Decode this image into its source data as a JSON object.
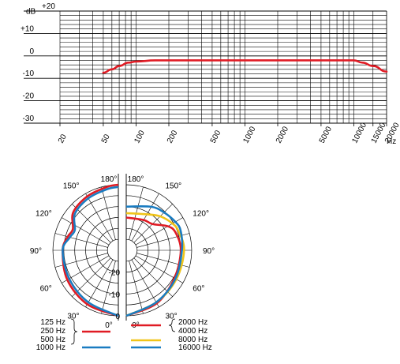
{
  "colors": {
    "red": "#e01b24",
    "blue": "#1a7cc1",
    "yellow": "#f0c419",
    "grid": "#000000"
  },
  "chart_data": [
    {
      "type": "line",
      "xscale": "log",
      "xlim": [
        20,
        20000
      ],
      "ylim": [
        -30,
        20
      ],
      "ylabel": "dB",
      "xunit": "Hz",
      "y_ticks": [
        "+20",
        "+10",
        "0",
        "-10",
        "-20",
        "-30"
      ],
      "x_ticks": [
        "20",
        "50",
        "100",
        "200",
        "500",
        "1000",
        "2000",
        "5000",
        "10000",
        "15000",
        "20000"
      ],
      "grid": true,
      "series": [
        {
          "color": "#e01b24",
          "x": [
            50,
            60,
            70,
            85,
            100,
            150,
            300,
            1000,
            5000,
            10000,
            12000,
            15000,
            20000
          ],
          "y": [
            -7.5,
            -6,
            -4.5,
            -3,
            -2.5,
            -2,
            -2,
            -2,
            -2,
            -2,
            -3,
            -4.5,
            -7
          ]
        }
      ]
    },
    {
      "type": "polar",
      "angle_labels": [
        "0°",
        "30°",
        "60°",
        "90°",
        "120°",
        "150°",
        "180°"
      ],
      "radial_labels": [
        "0",
        "-10",
        "-20"
      ],
      "left_half": [
        {
          "color": "#e01b24",
          "label": "125 Hz / 250 Hz",
          "theta": [
            0,
            30,
            60,
            90,
            105,
            115,
            130,
            150,
            170,
            180
          ],
          "r_db": [
            0,
            -1.5,
            -3,
            -4.5,
            -6,
            -7,
            -3,
            -1.5,
            -0.5,
            0
          ]
        },
        {
          "color": "#1a7cc1",
          "label": "500 Hz / 1000 Hz",
          "theta": [
            0,
            30,
            60,
            90,
            105,
            115,
            130,
            150,
            170,
            180
          ],
          "r_db": [
            0,
            -2.5,
            -4,
            -4.5,
            -7,
            -8,
            -4,
            -2.5,
            -1.5,
            -1
          ]
        }
      ],
      "right_half": [
        {
          "color": "#e01b24",
          "label": "2000 Hz / 4000 Hz",
          "theta": [
            0,
            30,
            60,
            90,
            110,
            120,
            135,
            150,
            180
          ],
          "r_db": [
            0,
            -2,
            -4.5,
            -5,
            -6,
            -8,
            -13,
            -14,
            -15
          ]
        },
        {
          "color": "#f0c419",
          "label": "8000 Hz",
          "theta": [
            0,
            30,
            60,
            90,
            110,
            120,
            135,
            150,
            180
          ],
          "r_db": [
            0,
            -2.5,
            -3.5,
            -3.5,
            -4.5,
            -5.5,
            -8,
            -11,
            -13
          ]
        },
        {
          "color": "#1a7cc1",
          "label": "16000 Hz",
          "theta": [
            0,
            30,
            60,
            90,
            110,
            120,
            135,
            150,
            180
          ],
          "r_db": [
            0,
            -2.5,
            -4,
            -4.5,
            -3.5,
            -4,
            -5.5,
            -7,
            -10
          ]
        }
      ]
    }
  ],
  "legend": {
    "left": [
      {
        "labels": [
          "125 Hz",
          "250 Hz"
        ],
        "color": "#e01b24"
      },
      {
        "labels": [
          "500 Hz",
          "1000 Hz"
        ],
        "color": "#1a7cc1"
      }
    ],
    "right": [
      {
        "labels": [
          "2000 Hz",
          "4000 Hz"
        ],
        "color": "#e01b24"
      },
      {
        "labels": [
          "8000 Hz"
        ],
        "color": "#f0c419"
      },
      {
        "labels": [
          "16000 Hz"
        ],
        "color": "#1a7cc1"
      }
    ]
  }
}
